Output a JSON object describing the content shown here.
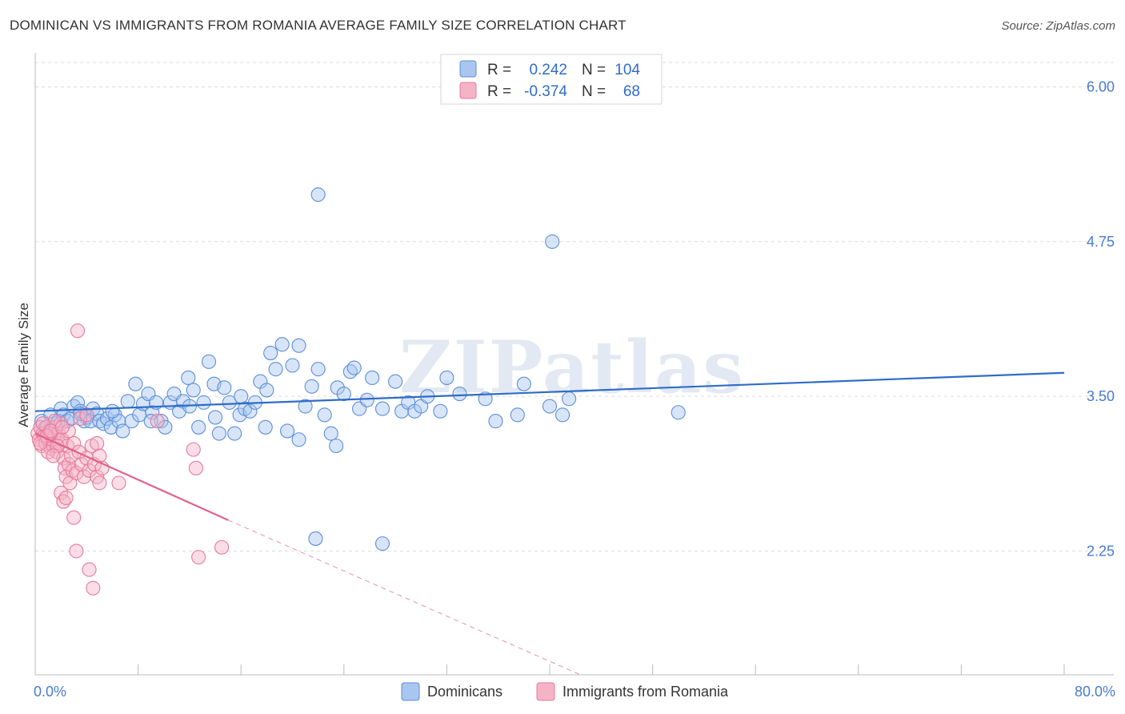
{
  "title": "DOMINICAN VS IMMIGRANTS FROM ROMANIA AVERAGE FAMILY SIZE CORRELATION CHART",
  "source": "Source: ZipAtlas.com",
  "watermark": "ZIPatlas",
  "colors": {
    "blue": "#5b8fd9",
    "blue_fill": "#a9c6f0",
    "blue_line": "#2e6cc9",
    "pink": "#e8799b",
    "pink_fill": "#f5b3c7",
    "pink_line": "#e0628a",
    "tick_text": "#4a7bd0"
  },
  "chart_data": {
    "type": "scatter",
    "title": "DOMINICAN VS IMMIGRANTS FROM ROMANIA AVERAGE FAMILY SIZE CORRELATION CHART",
    "xlabel": "",
    "ylabel": "Average Family Size",
    "xlim": [
      0,
      80
    ],
    "ylim": [
      1.25,
      6.25
    ],
    "x_tick_labels": [
      "0.0%",
      "80.0%"
    ],
    "y_ticks": [
      2.25,
      3.5,
      4.75,
      6.0
    ],
    "y_tick_labels": [
      "2.25",
      "3.50",
      "4.75",
      "6.00"
    ],
    "grid": true,
    "legend_placement": "top-center",
    "legend": [
      {
        "series": "Dominicans",
        "r_label": "R =",
        "r_value": "0.242",
        "n_label": "N =",
        "n_value": "104"
      },
      {
        "series": "Immigrants from Romania",
        "r_label": "R =",
        "r_value": "-0.374",
        "n_label": "N =",
        "n_value": "68"
      }
    ],
    "series": [
      {
        "name": "Dominicans",
        "trend": {
          "x": [
            0,
            80
          ],
          "y": [
            3.38,
            3.69
          ]
        },
        "points": [
          [
            0.5,
            3.3
          ],
          [
            0.8,
            3.25
          ],
          [
            1.0,
            3.22
          ],
          [
            1.2,
            3.35
          ],
          [
            1.5,
            3.28
          ],
          [
            1.8,
            3.3
          ],
          [
            2.0,
            3.4
          ],
          [
            2.2,
            3.35
          ],
          [
            2.5,
            3.3
          ],
          [
            2.8,
            3.32
          ],
          [
            3.0,
            3.42
          ],
          [
            3.3,
            3.45
          ],
          [
            3.5,
            3.38
          ],
          [
            3.8,
            3.3
          ],
          [
            4.0,
            3.33
          ],
          [
            4.3,
            3.3
          ],
          [
            4.5,
            3.4
          ],
          [
            4.8,
            3.36
          ],
          [
            5.0,
            3.3
          ],
          [
            5.3,
            3.28
          ],
          [
            5.6,
            3.32
          ],
          [
            5.9,
            3.25
          ],
          [
            6.2,
            3.35
          ],
          [
            6.5,
            3.3
          ],
          [
            6.8,
            3.22
          ],
          [
            7.2,
            3.46
          ],
          [
            7.5,
            3.3
          ],
          [
            7.8,
            3.6
          ],
          [
            8.1,
            3.35
          ],
          [
            8.4,
            3.44
          ],
          [
            8.8,
            3.52
          ],
          [
            9.1,
            3.37
          ],
          [
            9.4,
            3.45
          ],
          [
            9.8,
            3.3
          ],
          [
            10.1,
            3.25
          ],
          [
            10.5,
            3.45
          ],
          [
            10.8,
            3.52
          ],
          [
            11.2,
            3.38
          ],
          [
            11.5,
            3.46
          ],
          [
            11.9,
            3.65
          ],
          [
            12.3,
            3.55
          ],
          [
            12.7,
            3.25
          ],
          [
            13.1,
            3.45
          ],
          [
            13.5,
            3.78
          ],
          [
            13.9,
            3.6
          ],
          [
            14.3,
            3.2
          ],
          [
            14.7,
            3.57
          ],
          [
            15.1,
            3.45
          ],
          [
            15.5,
            3.2
          ],
          [
            15.9,
            3.35
          ],
          [
            16.3,
            3.4
          ],
          [
            16.7,
            3.38
          ],
          [
            17.1,
            3.45
          ],
          [
            17.5,
            3.62
          ],
          [
            17.9,
            3.25
          ],
          [
            18.3,
            3.85
          ],
          [
            18.7,
            3.72
          ],
          [
            19.2,
            3.92
          ],
          [
            19.6,
            3.22
          ],
          [
            20.0,
            3.75
          ],
          [
            20.5,
            3.91
          ],
          [
            21.0,
            3.42
          ],
          [
            21.5,
            3.58
          ],
          [
            22.0,
            3.72
          ],
          [
            22.5,
            3.35
          ],
          [
            23.0,
            3.2
          ],
          [
            23.5,
            3.57
          ],
          [
            24.0,
            3.52
          ],
          [
            24.5,
            3.7
          ],
          [
            24.8,
            3.73
          ],
          [
            25.2,
            3.4
          ],
          [
            25.8,
            3.47
          ],
          [
            26.2,
            3.65
          ],
          [
            27.0,
            3.4
          ],
          [
            28.0,
            3.62
          ],
          [
            28.5,
            3.38
          ],
          [
            29.0,
            3.45
          ],
          [
            29.5,
            3.38
          ],
          [
            30.0,
            3.42
          ],
          [
            31.5,
            3.38
          ],
          [
            32.0,
            3.65
          ],
          [
            33.0,
            3.52
          ],
          [
            35.0,
            3.48
          ],
          [
            35.8,
            3.3
          ],
          [
            37.5,
            3.35
          ],
          [
            38.0,
            3.6
          ],
          [
            40.0,
            3.42
          ],
          [
            41.0,
            3.35
          ],
          [
            41.5,
            3.48
          ],
          [
            50.0,
            3.37
          ],
          [
            22.0,
            5.13
          ],
          [
            40.2,
            4.75
          ],
          [
            21.8,
            2.35
          ],
          [
            20.5,
            3.15
          ],
          [
            23.4,
            3.1
          ],
          [
            27.0,
            2.31
          ],
          [
            3.5,
            3.36
          ],
          [
            6.0,
            3.38
          ],
          [
            9.0,
            3.3
          ],
          [
            12.0,
            3.42
          ],
          [
            14.0,
            3.33
          ],
          [
            16.0,
            3.5
          ],
          [
            18.0,
            3.55
          ],
          [
            30.5,
            3.5
          ]
        ]
      },
      {
        "name": "Immigrants from Romania",
        "trend": {
          "x": [
            0,
            15
          ],
          "y": [
            3.2,
            2.5
          ]
        },
        "trend_ext": {
          "x": [
            15,
            54
          ],
          "y": [
            2.5,
            0.72
          ]
        },
        "points": [
          [
            0.2,
            3.2
          ],
          [
            0.3,
            3.15
          ],
          [
            0.4,
            3.25
          ],
          [
            0.5,
            3.1
          ],
          [
            0.6,
            3.2
          ],
          [
            0.7,
            3.18
          ],
          [
            0.8,
            3.12
          ],
          [
            0.9,
            3.25
          ],
          [
            1.0,
            3.15
          ],
          [
            1.1,
            3.2
          ],
          [
            1.2,
            3.08
          ],
          [
            1.3,
            3.22
          ],
          [
            1.4,
            3.1
          ],
          [
            1.5,
            3.18
          ],
          [
            1.6,
            3.25
          ],
          [
            1.7,
            3.05
          ],
          [
            1.8,
            3.2
          ],
          [
            1.9,
            3.12
          ],
          [
            2.0,
            3.28
          ],
          [
            2.1,
            3.15
          ],
          [
            2.2,
            3.0
          ],
          [
            2.3,
            2.92
          ],
          [
            2.4,
            2.85
          ],
          [
            2.5,
            3.1
          ],
          [
            2.6,
            2.95
          ],
          [
            2.7,
            2.8
          ],
          [
            2.8,
            3.02
          ],
          [
            2.9,
            2.9
          ],
          [
            3.0,
            3.12
          ],
          [
            3.2,
            2.88
          ],
          [
            3.4,
            3.05
          ],
          [
            3.6,
            2.95
          ],
          [
            3.8,
            2.85
          ],
          [
            4.0,
            3.0
          ],
          [
            4.2,
            2.9
          ],
          [
            4.4,
            3.1
          ],
          [
            4.6,
            2.95
          ],
          [
            4.8,
            2.85
          ],
          [
            5.0,
            3.02
          ],
          [
            5.2,
            2.92
          ],
          [
            2.0,
            2.72
          ],
          [
            2.2,
            2.65
          ],
          [
            2.4,
            2.68
          ],
          [
            3.0,
            2.52
          ],
          [
            3.2,
            2.25
          ],
          [
            4.2,
            2.1
          ],
          [
            4.5,
            1.95
          ],
          [
            3.3,
            4.03
          ],
          [
            12.3,
            3.07
          ],
          [
            12.5,
            2.92
          ],
          [
            12.7,
            2.2
          ],
          [
            14.5,
            2.28
          ],
          [
            5.0,
            2.8
          ],
          [
            6.5,
            2.8
          ],
          [
            4.8,
            3.12
          ],
          [
            1.0,
            3.05
          ],
          [
            1.5,
            3.3
          ],
          [
            0.6,
            3.28
          ],
          [
            2.6,
            3.22
          ],
          [
            3.5,
            3.32
          ],
          [
            0.9,
            3.18
          ],
          [
            1.2,
            3.22
          ],
          [
            1.7,
            3.1
          ],
          [
            2.1,
            3.25
          ],
          [
            0.4,
            3.12
          ],
          [
            1.4,
            3.02
          ],
          [
            9.5,
            3.3
          ],
          [
            4.0,
            3.35
          ]
        ]
      }
    ]
  },
  "bottom_legend": [
    {
      "label": "Dominicans"
    },
    {
      "label": "Immigrants from Romania"
    }
  ]
}
